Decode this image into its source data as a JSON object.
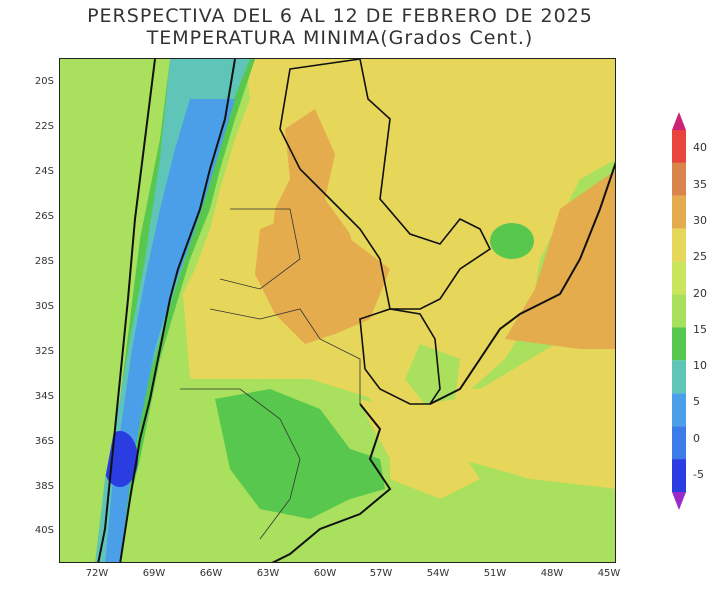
{
  "header": {
    "title_line1": "PERSPECTIVA DEL 6 AL 12 DE FEBRERO DE 2025",
    "title_line2": "TEMPERATURA MINIMA(Grados Cent.)"
  },
  "map": {
    "lat_labels": [
      "20S",
      "22S",
      "24S",
      "26S",
      "28S",
      "30S",
      "32S",
      "34S",
      "36S",
      "38S",
      "40S"
    ],
    "lon_labels": [
      "72W",
      "69W",
      "66W",
      "63W",
      "60W",
      "57W",
      "54W",
      "51W",
      "48W",
      "45W"
    ]
  },
  "legend": {
    "labels": [
      "40",
      "35",
      "30",
      "25",
      "20",
      "15",
      "10",
      "5",
      "0",
      "-5"
    ],
    "colors": [
      "#cc2277",
      "#e8453c",
      "#d9844a",
      "#e5ac4e",
      "#e6d65a",
      "#c9e45d",
      "#a7e05a",
      "#57c84d",
      "#5fc5b8",
      "#4a9fe8",
      "#3b7de8",
      "#2a3de0",
      "#9b2bc9"
    ]
  }
}
